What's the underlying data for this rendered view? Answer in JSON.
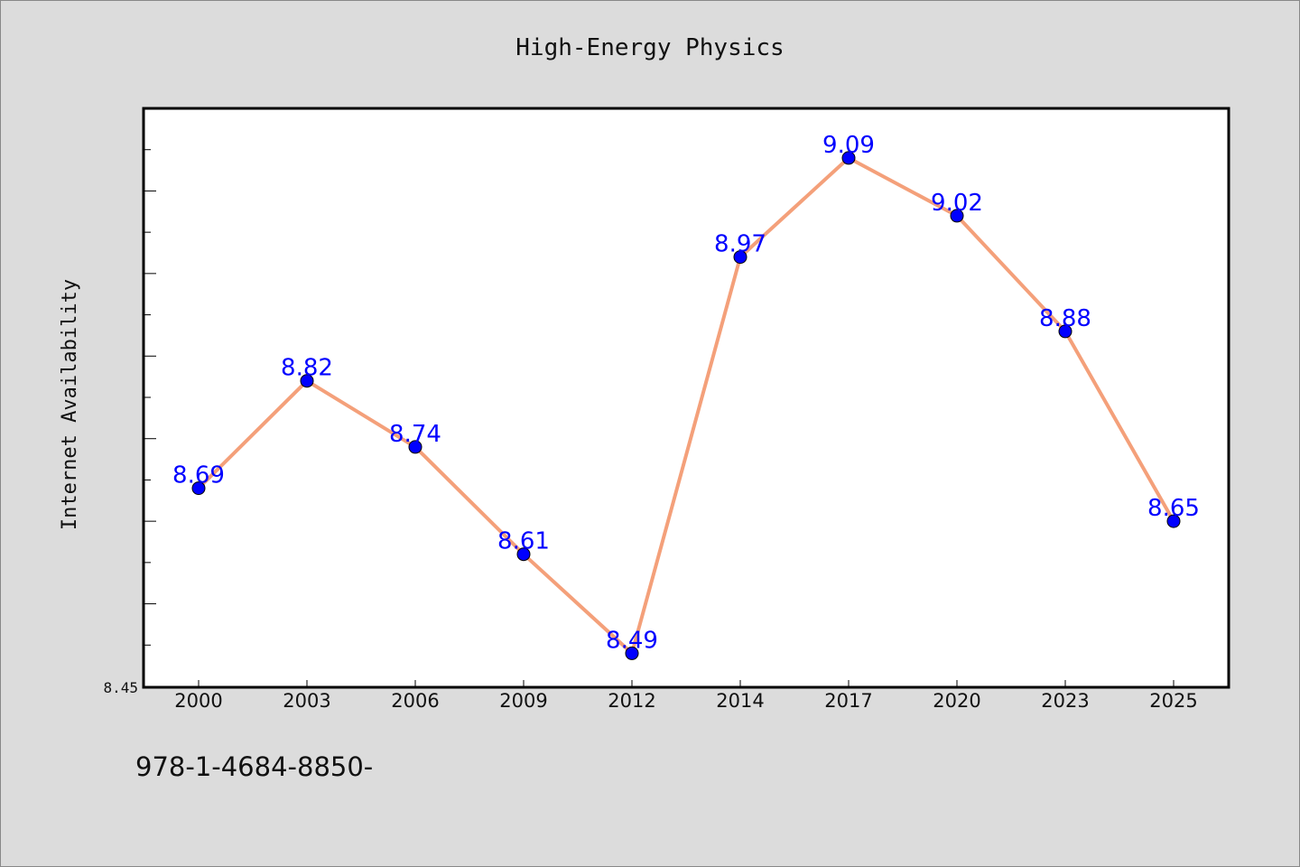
{
  "chart_data": {
    "type": "line",
    "title": "High-Energy Physics",
    "xlabel": "",
    "ylabel": "Internet Availability",
    "categories": [
      "2000",
      "2003",
      "2006",
      "2009",
      "2012",
      "2014",
      "2017",
      "2020",
      "2023",
      "2025"
    ],
    "series": [
      {
        "values": [
          8.69,
          8.82,
          8.74,
          8.61,
          8.49,
          8.97,
          9.09,
          9.02,
          8.88,
          8.65
        ]
      }
    ],
    "data_labels": [
      "8.69",
      "8.82",
      "8.74",
      "8.61",
      "8.49",
      "8.97",
      "9.09",
      "9.02",
      "8.88",
      "8.65"
    ],
    "ylim": [
      8.45,
      9.15
    ],
    "y_tick_label": "8.45",
    "grid": false,
    "legend": "none"
  },
  "colors": {
    "background": "#dcdcdc",
    "plot_area": "#ffffff",
    "line": "#f4a07a",
    "marker": "#0000ff",
    "data_label": "#0000ff"
  },
  "caption": "978-1-4684-8850-"
}
